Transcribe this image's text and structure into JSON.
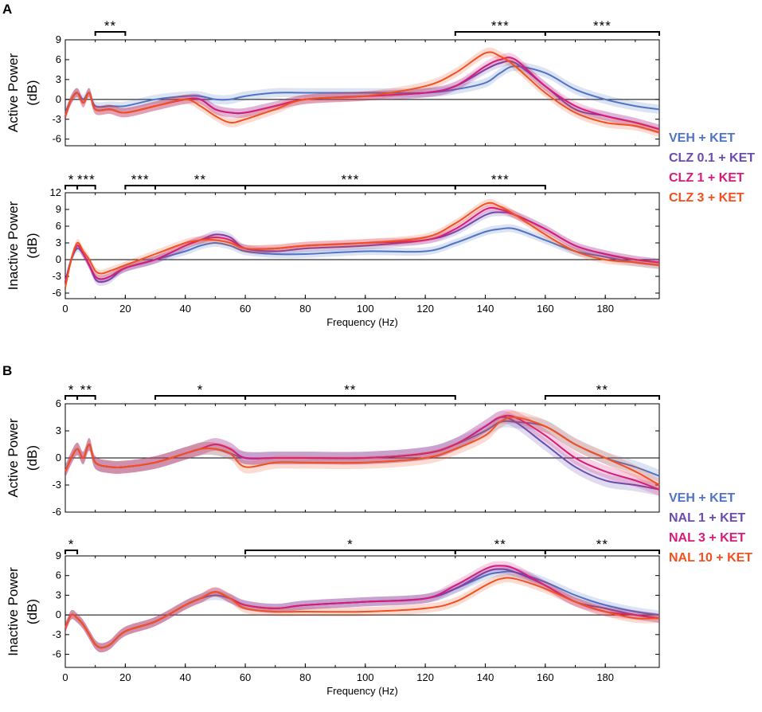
{
  "colors": {
    "veh": "#4F74C4",
    "low": "#6A4BB0",
    "mid": "#D81B7A",
    "high": "#F2501E"
  },
  "chart_data": [
    {
      "type": "line",
      "id": "A_active",
      "panel": "A",
      "ylabel_line1": "Active Power",
      "ylabel_line2": "(dB)",
      "ylim": [
        -7,
        9
      ],
      "yticks": [
        -6,
        -3,
        0,
        3,
        6,
        9
      ],
      "xlim": [
        0,
        198
      ],
      "xticks": [],
      "xlabel": "",
      "sig_bars": [
        {
          "start": 10,
          "end": 20,
          "label": "**"
        },
        {
          "start": 130,
          "end": 160,
          "label": "***"
        },
        {
          "start": 160,
          "end": 198,
          "label": "***"
        }
      ],
      "x": [
        0,
        2,
        4,
        6,
        8,
        10,
        15,
        20,
        30,
        40,
        45,
        50,
        55,
        60,
        70,
        80,
        100,
        120,
        130,
        140,
        145,
        150,
        160,
        170,
        180,
        190,
        198
      ],
      "series": [
        {
          "name": "VEH + KET",
          "color_key": "veh",
          "values": [
            -2,
            0,
            1,
            0,
            1,
            -1,
            -1,
            -1,
            0,
            0.5,
            0.5,
            0,
            0,
            0.5,
            1,
            1,
            1,
            1,
            1.5,
            2.5,
            4,
            5,
            4,
            1.5,
            0,
            -1,
            -1.5
          ]
        },
        {
          "name": "CLZ 0.1 + KET",
          "color_key": "low",
          "values": [
            -2.5,
            0,
            1,
            -0.5,
            1,
            -1.5,
            -1.5,
            -2,
            -1,
            0,
            0,
            -1.5,
            -2,
            -2,
            -1,
            0,
            0.5,
            1,
            2,
            4.5,
            5.5,
            5.5,
            2,
            -1.5,
            -2.5,
            -3.5,
            -4.5
          ]
        },
        {
          "name": "CLZ 1 + KET",
          "color_key": "mid",
          "values": [
            -2.5,
            0,
            1,
            -0.5,
            1,
            -1.5,
            -1.5,
            -2,
            -1,
            0,
            0,
            -1.5,
            -2,
            -2,
            -1,
            0,
            0.5,
            1,
            2,
            5,
            6,
            6,
            2,
            -1,
            -2.5,
            -3.5,
            -4.5
          ]
        },
        {
          "name": "CLZ 3 + KET",
          "color_key": "high",
          "values": [
            -2.5,
            0,
            1,
            -0.5,
            1,
            -1.5,
            -1.5,
            -2,
            -1,
            0,
            -1,
            -2.5,
            -3.5,
            -3,
            -1.5,
            0,
            0.5,
            2,
            4,
            7,
            6.5,
            5,
            1,
            -2,
            -3.5,
            -4,
            -5
          ]
        }
      ]
    },
    {
      "type": "line",
      "id": "A_inactive",
      "panel": "A",
      "ylabel_line1": "Inactive Power",
      "ylabel_line2": "(dB)",
      "ylim": [
        -7,
        12
      ],
      "yticks": [
        -6,
        -3,
        0,
        3,
        6,
        9,
        12
      ],
      "xlim": [
        0,
        198
      ],
      "xticks": [
        0,
        20,
        40,
        60,
        80,
        100,
        120,
        140,
        160,
        180
      ],
      "xlabel": "Frequency (Hz)",
      "sig_bars": [
        {
          "start": 0,
          "end": 4,
          "label": "*"
        },
        {
          "start": 4,
          "end": 10,
          "label": "***"
        },
        {
          "start": 20,
          "end": 30,
          "label": "***"
        },
        {
          "start": 30,
          "end": 60,
          "label": "**"
        },
        {
          "start": 60,
          "end": 130,
          "label": "***"
        },
        {
          "start": 130,
          "end": 160,
          "label": "***"
        }
      ],
      "x": [
        0,
        2,
        4,
        6,
        8,
        10,
        12,
        15,
        20,
        30,
        40,
        45,
        50,
        55,
        60,
        70,
        80,
        100,
        120,
        130,
        140,
        145,
        150,
        160,
        170,
        180,
        190,
        198
      ],
      "series": [
        {
          "name": "VEH + KET",
          "color_key": "veh",
          "values": [
            -4,
            0,
            2,
            1,
            -1,
            -3,
            -3.5,
            -3,
            -1.5,
            0,
            1.5,
            2.5,
            3,
            2.5,
            1.5,
            1,
            1,
            1.5,
            1.5,
            3,
            5,
            5.5,
            5.5,
            3.5,
            1.5,
            0.5,
            -0.5,
            -1
          ]
        },
        {
          "name": "CLZ 0.1 + KET",
          "color_key": "low",
          "values": [
            -4,
            0,
            2.5,
            1,
            -1,
            -3.5,
            -4,
            -3.5,
            -1.5,
            0,
            2.5,
            3.5,
            4.5,
            4,
            2,
            1.5,
            2,
            2.5,
            3.5,
            5,
            8,
            8.5,
            8,
            5.5,
            2.5,
            1,
            0,
            -0.5
          ]
        },
        {
          "name": "CLZ 1 + KET",
          "color_key": "mid",
          "values": [
            -4,
            0,
            2.5,
            1,
            -1,
            -3,
            -3.5,
            -3,
            -1.5,
            0,
            2.5,
            3.5,
            4,
            3.5,
            2,
            2,
            2.5,
            3,
            3.5,
            5.5,
            9,
            9,
            8,
            5.5,
            2.5,
            1,
            0,
            -0.5
          ]
        },
        {
          "name": "CLZ 3 + KET",
          "color_key": "high",
          "values": [
            -5,
            0,
            3,
            1.5,
            0,
            -2,
            -2.5,
            -2,
            -1,
            1,
            3,
            3.5,
            3.5,
            3,
            2,
            2,
            2.5,
            3,
            4,
            6.5,
            10,
            9.5,
            8,
            4.5,
            1.5,
            0,
            -0.5,
            -1
          ]
        }
      ]
    },
    {
      "type": "line",
      "id": "B_active",
      "panel": "B",
      "ylabel_line1": "Active Power",
      "ylabel_line2": "(dB)",
      "ylim": [
        -6,
        6
      ],
      "yticks": [
        -6,
        -3,
        0,
        3,
        6
      ],
      "xlim": [
        0,
        198
      ],
      "xticks": [],
      "xlabel": "",
      "sig_bars": [
        {
          "start": 0,
          "end": 4,
          "label": "*"
        },
        {
          "start": 4,
          "end": 10,
          "label": "**"
        },
        {
          "start": 30,
          "end": 60,
          "label": "*"
        },
        {
          "start": 60,
          "end": 130,
          "label": "**"
        },
        {
          "start": 160,
          "end": 198,
          "label": "**"
        }
      ],
      "x": [
        0,
        2,
        4,
        6,
        8,
        10,
        15,
        20,
        30,
        40,
        45,
        50,
        55,
        60,
        70,
        80,
        100,
        120,
        130,
        140,
        145,
        150,
        160,
        170,
        180,
        190,
        198
      ],
      "series": [
        {
          "name": "VEH + KET",
          "color_key": "veh",
          "values": [
            -1.5,
            0,
            1,
            0,
            1.5,
            -0.5,
            -1,
            -1,
            -0.5,
            0.5,
            1,
            1,
            0.5,
            0,
            0,
            0,
            0,
            0.5,
            1.5,
            3,
            4,
            4,
            3.5,
            1.5,
            0,
            -1,
            -2
          ]
        },
        {
          "name": "NAL 1 + KET",
          "color_key": "low",
          "values": [
            -1.5,
            0,
            1,
            0,
            1.5,
            -0.5,
            -1,
            -1,
            -0.5,
            0.5,
            1,
            1.5,
            1,
            0,
            0,
            0,
            0,
            0.5,
            1.5,
            3.5,
            4.5,
            4,
            1.5,
            -1,
            -2.5,
            -3,
            -3.5
          ]
        },
        {
          "name": "NAL 3 + KET",
          "color_key": "mid",
          "values": [
            -1.5,
            0,
            1,
            0,
            1.5,
            -0.5,
            -1,
            -1,
            -0.5,
            0.5,
            1,
            1.5,
            1,
            0,
            0,
            0,
            0,
            0.5,
            1.5,
            3.5,
            4.5,
            4.5,
            2.5,
            0,
            -1.5,
            -2.5,
            -3.5
          ]
        },
        {
          "name": "NAL 10 + KET",
          "color_key": "high",
          "values": [
            -1.5,
            0,
            1,
            0,
            1.5,
            -0.5,
            -1,
            -1,
            -0.5,
            0.5,
            1,
            1,
            0.5,
            -1,
            -0.5,
            -0.5,
            -0.5,
            0,
            1,
            2.5,
            4,
            4.5,
            3.5,
            1.5,
            0,
            -1.5,
            -3
          ]
        }
      ]
    },
    {
      "type": "line",
      "id": "B_inactive",
      "panel": "B",
      "ylabel_line1": "Inactive Power",
      "ylabel_line2": "(dB)",
      "ylim": [
        -8,
        9
      ],
      "yticks": [
        -6,
        -3,
        0,
        3,
        6,
        9
      ],
      "xlim": [
        0,
        198
      ],
      "xticks": [
        0,
        20,
        40,
        60,
        80,
        100,
        120,
        140,
        160,
        180
      ],
      "xlabel": "Frequency (Hz)",
      "sig_bars": [
        {
          "start": 0,
          "end": 4,
          "label": "*"
        },
        {
          "start": 60,
          "end": 130,
          "label": "*"
        },
        {
          "start": 130,
          "end": 160,
          "label": "**"
        },
        {
          "start": 160,
          "end": 198,
          "label": "**"
        }
      ],
      "x": [
        0,
        2,
        4,
        6,
        8,
        10,
        12,
        15,
        20,
        30,
        40,
        45,
        50,
        55,
        60,
        70,
        80,
        100,
        120,
        130,
        140,
        145,
        150,
        160,
        170,
        180,
        190,
        198
      ],
      "series": [
        {
          "name": "VEH + KET",
          "color_key": "veh",
          "values": [
            -2,
            0,
            -0.5,
            -1.5,
            -3,
            -4.5,
            -5,
            -4.5,
            -2.5,
            -1,
            1.5,
            2.5,
            3,
            2.5,
            1.5,
            1,
            1.5,
            2,
            2.5,
            4,
            6,
            6.5,
            6.5,
            5,
            3,
            1.5,
            0.5,
            0
          ]
        },
        {
          "name": "NAL 1 + KET",
          "color_key": "low",
          "values": [
            -2,
            0,
            -0.5,
            -1.5,
            -3,
            -4.5,
            -5,
            -4.5,
            -2.5,
            -1,
            1.5,
            2.5,
            3.5,
            2.5,
            1.5,
            1,
            1.5,
            2,
            2.5,
            4,
            6.5,
            7,
            6.5,
            4.5,
            2,
            1,
            0,
            -0.5
          ]
        },
        {
          "name": "NAL 3 + KET",
          "color_key": "mid",
          "values": [
            -2,
            0,
            -0.5,
            -1.5,
            -3,
            -4.5,
            -5,
            -4.5,
            -2.5,
            -1,
            1.5,
            2.5,
            3.5,
            2.5,
            1.5,
            1,
            1.5,
            2,
            2.5,
            4.5,
            7,
            7.5,
            7,
            4.5,
            2,
            0.5,
            0,
            -0.5
          ]
        },
        {
          "name": "NAL 10 + KET",
          "color_key": "high",
          "values": [
            -2,
            0,
            -0.5,
            -1.5,
            -3,
            -4.5,
            -5,
            -4.5,
            -2.5,
            -1,
            1.5,
            2.5,
            3.5,
            2.5,
            1,
            0.5,
            0.5,
            0.5,
            1,
            2,
            4.5,
            5.5,
            5.5,
            4,
            2,
            0.5,
            -0.5,
            -0.5
          ]
        }
      ]
    }
  ],
  "panel_labels": {
    "A": "A",
    "B": "B"
  },
  "legends": {
    "A": [
      "VEH + KET",
      "CLZ 0.1 + KET",
      "CLZ 1 + KET",
      "CLZ 3 + KET"
    ],
    "B": [
      "VEH + KET",
      "NAL 1 + KET",
      "NAL 3 + KET",
      "NAL 10 + KET"
    ]
  }
}
